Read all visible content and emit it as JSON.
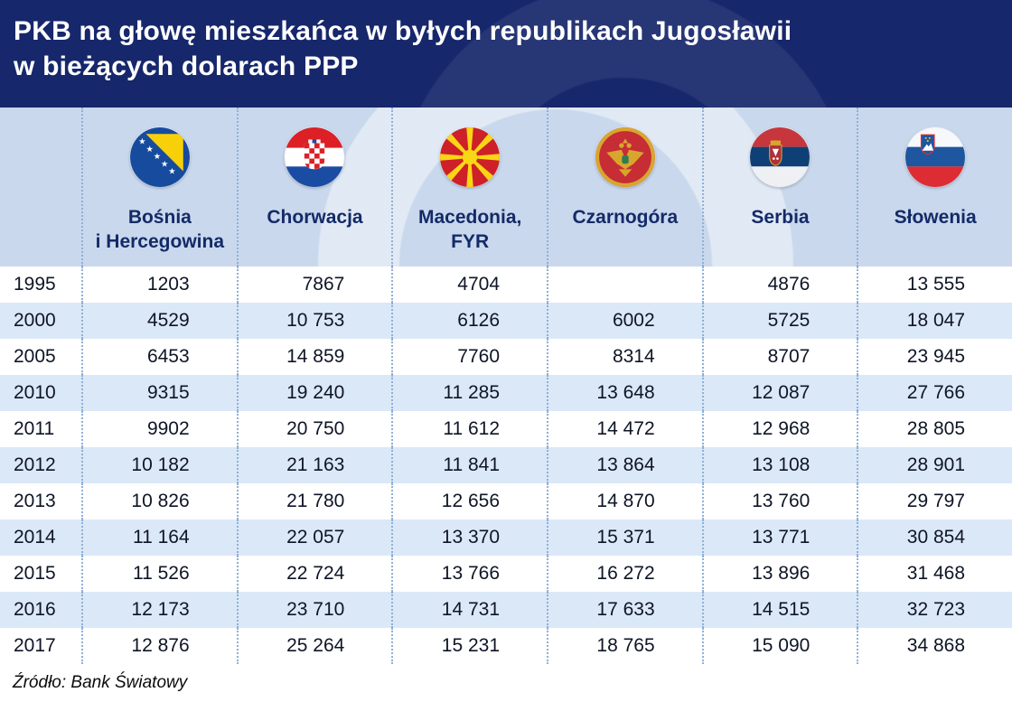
{
  "title": {
    "line1": "PKB na głowę mieszkańca w byłych republikach Jugosławii",
    "line2": "w bieżących dolarach PPP"
  },
  "table": {
    "columns": [
      {
        "label1": "Bośnia",
        "label2": "i Hercegowina",
        "flag": "bosnia-herzegovina-flag"
      },
      {
        "label1": "Chorwacja",
        "label2": "",
        "flag": "croatia-flag"
      },
      {
        "label1": "Macedonia,",
        "label2": "FYR",
        "flag": "macedonia-flag"
      },
      {
        "label1": "Czarnogóra",
        "label2": "",
        "flag": "montenegro-flag"
      },
      {
        "label1": "Serbia",
        "label2": "",
        "flag": "serbia-flag"
      },
      {
        "label1": "Słowenia",
        "label2": "",
        "flag": "slovenia-flag"
      }
    ],
    "rows": [
      {
        "year": "1995",
        "values": [
          "1203",
          "7867",
          "4704",
          "",
          "4876",
          "13 555"
        ]
      },
      {
        "year": "2000",
        "values": [
          "4529",
          "10 753",
          "6126",
          "6002",
          "5725",
          "18 047"
        ]
      },
      {
        "year": "2005",
        "values": [
          "6453",
          "14 859",
          "7760",
          "8314",
          "8707",
          "23 945"
        ]
      },
      {
        "year": "2010",
        "values": [
          "9315",
          "19 240",
          "11 285",
          "13 648",
          "12 087",
          "27 766"
        ]
      },
      {
        "year": "2011",
        "values": [
          "9902",
          "20 750",
          "11 612",
          "14 472",
          "12 968",
          "28 805"
        ]
      },
      {
        "year": "2012",
        "values": [
          "10 182",
          "21 163",
          "11 841",
          "13 864",
          "13 108",
          "28 901"
        ]
      },
      {
        "year": "2013",
        "values": [
          "10 826",
          "21 780",
          "12 656",
          "14 870",
          "13 760",
          "29 797"
        ]
      },
      {
        "year": "2014",
        "values": [
          "11 164",
          "22 057",
          "13 370",
          "15 371",
          "13 771",
          "30 854"
        ]
      },
      {
        "year": "2015",
        "values": [
          "11 526",
          "22 724",
          "13 766",
          "16 272",
          "13 896",
          "31 468"
        ]
      },
      {
        "year": "2016",
        "values": [
          "12 173",
          "23 710",
          "14 731",
          "17 633",
          "14 515",
          "32 723"
        ]
      },
      {
        "year": "2017",
        "values": [
          "12 876",
          "25 264",
          "15 231",
          "18 765",
          "15 090",
          "34 868"
        ]
      }
    ]
  },
  "footer": {
    "source": "Źródło: Bank Światowy"
  },
  "colors": {
    "title_bg": "#17276b",
    "header_bg": "#c9d8ec",
    "header_text": "#142a68",
    "row_bg": "#ffffff",
    "row_alt_bg": "#dbe8f7",
    "dotted_line": "#8fb0d6",
    "text_dark": "#0e1526"
  },
  "chart_data": {
    "type": "table",
    "title": "PKB na głowę mieszkańca w byłych republikach Jugosławii w bieżących dolarach PPP",
    "source": "Źródło: Bank Światowy",
    "categories": [
      "Bośnia i Hercegowina",
      "Chorwacja",
      "Macedonia, FYR",
      "Czarnogóra",
      "Serbia",
      "Słowenia"
    ],
    "x": [
      1995,
      2000,
      2005,
      2010,
      2011,
      2012,
      2013,
      2014,
      2015,
      2016,
      2017
    ],
    "series": [
      {
        "name": "Bośnia i Hercegowina",
        "values": [
          1203,
          4529,
          6453,
          9315,
          9902,
          10182,
          10826,
          11164,
          11526,
          12173,
          12876
        ]
      },
      {
        "name": "Chorwacja",
        "values": [
          7867,
          10753,
          14859,
          19240,
          20750,
          21163,
          21780,
          22057,
          22724,
          23710,
          25264
        ]
      },
      {
        "name": "Macedonia, FYR",
        "values": [
          4704,
          6126,
          7760,
          11285,
          11612,
          11841,
          12656,
          13370,
          13766,
          14731,
          15231
        ]
      },
      {
        "name": "Czarnogóra",
        "values": [
          null,
          6002,
          8314,
          13648,
          14472,
          13864,
          14870,
          15371,
          16272,
          17633,
          18765
        ]
      },
      {
        "name": "Serbia",
        "values": [
          4876,
          5725,
          8707,
          12087,
          12968,
          13108,
          13760,
          13771,
          13896,
          14515,
          15090
        ]
      },
      {
        "name": "Słowenia",
        "values": [
          13555,
          18047,
          23945,
          27766,
          28805,
          28901,
          29797,
          30854,
          31468,
          32723,
          34868
        ]
      }
    ]
  }
}
